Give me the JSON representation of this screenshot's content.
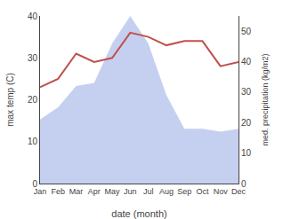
{
  "chart_data": {
    "type": "line",
    "xlabel": "date (month)",
    "ylabel": "max temp (C)",
    "y2label": "med. precipitation (kg/m2)",
    "categories": [
      "Jan",
      "Feb",
      "Mar",
      "Apr",
      "May",
      "Jun",
      "Jul",
      "Aug",
      "Sep",
      "Oct",
      "Nov",
      "Dec"
    ],
    "series": [
      {
        "type": "area",
        "axis": "y2",
        "color": "#c5d0f0",
        "values": [
          21,
          25,
          32,
          33,
          46,
          55,
          46,
          29,
          18,
          18,
          17,
          18
        ]
      },
      {
        "type": "line",
        "color": "#c0504d",
        "values": [
          23,
          25,
          31,
          29,
          30,
          36,
          35,
          33,
          34,
          34,
          28,
          29
        ]
      }
    ],
    "ylim": [
      0,
      40
    ],
    "yticks": [
      0,
      10,
      20,
      30,
      40
    ],
    "y2lim": [
      0,
      55
    ],
    "y2ticks": [
      0,
      10,
      20,
      30,
      40,
      50
    ],
    "grid": false
  }
}
